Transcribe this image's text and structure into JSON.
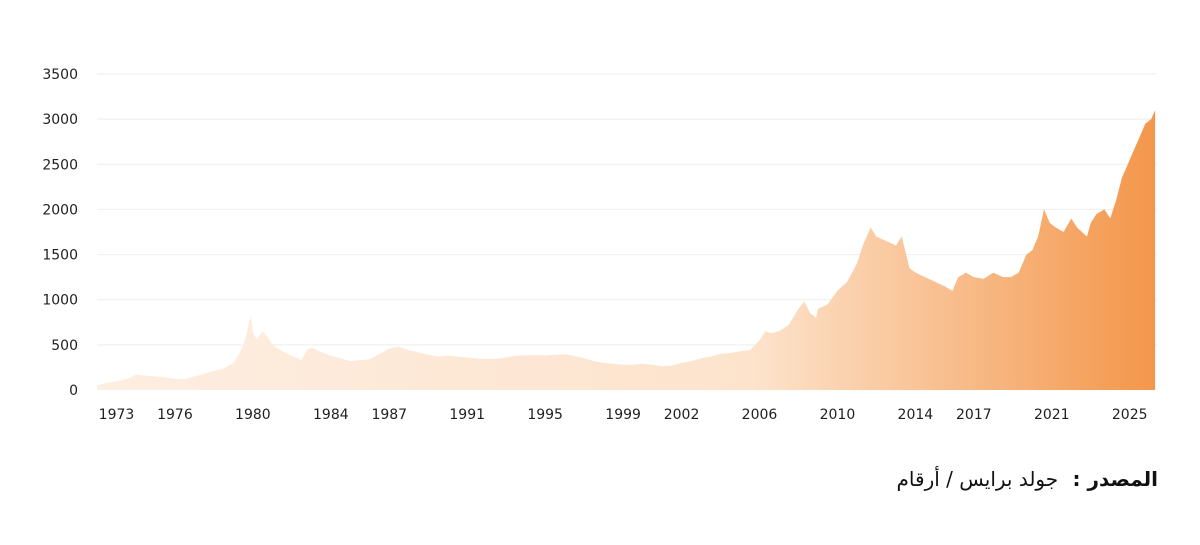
{
  "chart_data": {
    "type": "area",
    "title": "",
    "xlabel": "",
    "ylabel": "",
    "x_ticks": [
      "1973",
      "1976",
      "1980",
      "1984",
      "1987",
      "1991",
      "1995",
      "1999",
      "2002",
      "2006",
      "2010",
      "2014",
      "2017",
      "2021",
      "2025"
    ],
    "y_ticks": [
      0,
      500,
      1000,
      1500,
      2000,
      2500,
      3000,
      3500
    ],
    "xlim": [
      1972.0,
      2026.4
    ],
    "ylim": [
      0,
      3500
    ],
    "grid": true,
    "legend": "none",
    "colors": {
      "fill_light": "#fdeee2",
      "fill_dark": "#f3964a",
      "grid": "#eeeeee"
    },
    "series": [
      {
        "x": [
          1972.0,
          1972.5,
          1973.0,
          1973.5,
          1974.0,
          1974.5,
          1975.0,
          1975.5,
          1976.0,
          1976.5,
          1977.0,
          1977.5,
          1978.0,
          1978.5,
          1979.0,
          1979.3,
          1979.6,
          1979.9,
          1980.0,
          1980.2,
          1980.5,
          1980.8,
          1981.0,
          1981.5,
          1982.0,
          1982.5,
          1982.8,
          1983.0,
          1983.5,
          1984.0,
          1984.5,
          1985.0,
          1985.5,
          1986.0,
          1986.5,
          1987.0,
          1987.5,
          1988.0,
          1988.5,
          1989.0,
          1989.5,
          1990.0,
          1990.5,
          1991.0,
          1991.5,
          1992.0,
          1992.5,
          1993.0,
          1993.5,
          1994.0,
          1994.5,
          1995.0,
          1995.5,
          1996.0,
          1996.5,
          1997.0,
          1997.5,
          1998.0,
          1998.5,
          1999.0,
          1999.5,
          2000.0,
          2000.5,
          2001.0,
          2001.5,
          2002.0,
          2002.5,
          2003.0,
          2003.5,
          2004.0,
          2004.5,
          2005.0,
          2005.5,
          2006.0,
          2006.3,
          2006.6,
          2007.0,
          2007.5,
          2008.0,
          2008.3,
          2008.6,
          2008.9,
          2009.0,
          2009.5,
          2010.0,
          2010.5,
          2011.0,
          2011.3,
          2011.7,
          2012.0,
          2012.5,
          2013.0,
          2013.3,
          2013.7,
          2014.0,
          2014.5,
          2015.0,
          2015.5,
          2015.9,
          2016.2,
          2016.6,
          2017.0,
          2017.5,
          2018.0,
          2018.5,
          2018.9,
          2019.3,
          2019.7,
          2020.0,
          2020.3,
          2020.6,
          2020.9,
          2021.2,
          2021.6,
          2022.0,
          2022.3,
          2022.8,
          2023.0,
          2023.3,
          2023.7,
          2024.0,
          2024.3,
          2024.6,
          2024.9,
          2025.2,
          2025.5,
          2025.8,
          2026.1,
          2026.3
        ],
        "y": [
          50,
          80,
          95,
          120,
          170,
          160,
          150,
          140,
          125,
          120,
          150,
          180,
          210,
          240,
          300,
          400,
          550,
          830,
          640,
          560,
          650,
          580,
          500,
          430,
          380,
          330,
          450,
          470,
          420,
          380,
          350,
          320,
          330,
          340,
          400,
          460,
          480,
          440,
          420,
          390,
          370,
          380,
          370,
          360,
          350,
          345,
          345,
          360,
          380,
          385,
          385,
          385,
          390,
          395,
          380,
          350,
          320,
          300,
          290,
          280,
          280,
          290,
          280,
          265,
          270,
          300,
          320,
          350,
          370,
          400,
          410,
          430,
          440,
          550,
          650,
          630,
          650,
          720,
          900,
          980,
          850,
          800,
          900,
          950,
          1100,
          1200,
          1400,
          1600,
          1800,
          1700,
          1650,
          1600,
          1700,
          1350,
          1300,
          1250,
          1200,
          1150,
          1100,
          1250,
          1300,
          1250,
          1230,
          1300,
          1250,
          1250,
          1300,
          1500,
          1550,
          1700,
          2000,
          1850,
          1800,
          1750,
          1900,
          1800,
          1700,
          1850,
          1950,
          2000,
          1900,
          2100,
          2350,
          2500,
          2650,
          2800,
          2950,
          3000,
          3100
        ]
      }
    ]
  },
  "source": {
    "label": "المصدر :",
    "text": "جولد برايس / أرقام"
  }
}
